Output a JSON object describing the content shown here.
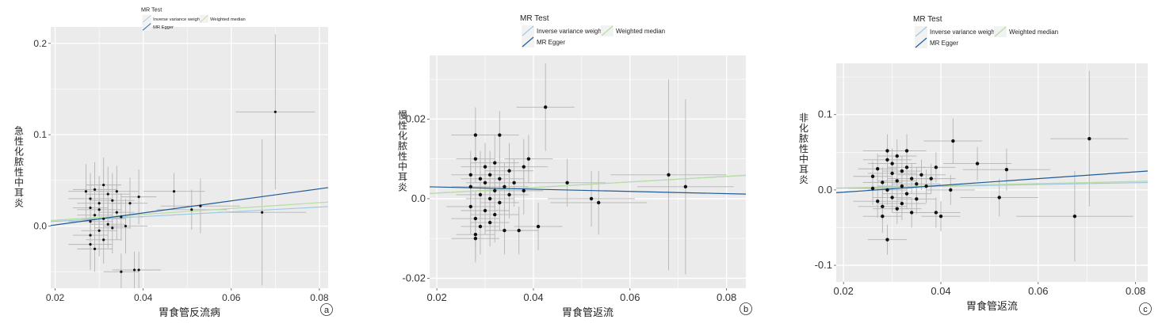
{
  "colors": {
    "panel_bg": "#ebebeb",
    "grid": "#ffffff",
    "point": "#111111",
    "errorbar": "#b5b5b5",
    "ivw": "#9ecae1",
    "egger": "#1f5a96",
    "median": "#b7dd9f",
    "text": "#222222",
    "tick_text": "#333333"
  },
  "chart_data": [
    {
      "type": "scatter",
      "panel_label": "a",
      "legend_title": "MR Test",
      "legend_placement": "top",
      "legend": [
        "Inverse variance weighted",
        "Weighted median",
        "MR Egger"
      ],
      "xlabel": "胃食管反流病",
      "ylabel": "急性化脓性中耳炎",
      "xlim": [
        0.019,
        0.082
      ],
      "ylim": [
        -0.068,
        0.218
      ],
      "xticks": [
        0.02,
        0.04,
        0.06,
        0.08
      ],
      "xtick_labels": [
        "0.02",
        "0.04",
        "0.06",
        "0.08"
      ],
      "yticks": [
        0.0,
        0.1,
        0.2
      ],
      "ytick_labels": [
        "0.0",
        "0.1",
        "0.2"
      ],
      "grid": true,
      "lines": [
        {
          "name": "Inverse variance weighted",
          "slope": 0.26,
          "intercept": 0
        },
        {
          "name": "Weighted median",
          "slope": 0.32,
          "intercept": 0
        },
        {
          "name": "MR Egger",
          "slope": 0.66,
          "intercept": -0.012
        }
      ],
      "points": [
        {
          "x": 0.027,
          "y": 0.038,
          "xerr": 0.004,
          "yerr": 0.03
        },
        {
          "x": 0.028,
          "y": 0.03,
          "xerr": 0.005,
          "yerr": 0.028
        },
        {
          "x": 0.028,
          "y": 0.02,
          "xerr": 0.004,
          "yerr": 0.03
        },
        {
          "x": 0.028,
          "y": 0.005,
          "xerr": 0.005,
          "yerr": 0.025
        },
        {
          "x": 0.028,
          "y": -0.01,
          "xerr": 0.004,
          "yerr": 0.03
        },
        {
          "x": 0.028,
          "y": -0.02,
          "xerr": 0.005,
          "yerr": 0.028
        },
        {
          "x": 0.029,
          "y": -0.025,
          "xerr": 0.004,
          "yerr": 0.025
        },
        {
          "x": 0.029,
          "y": 0.04,
          "xerr": 0.005,
          "yerr": 0.03
        },
        {
          "x": 0.029,
          "y": 0.012,
          "xerr": 0.004,
          "yerr": 0.026
        },
        {
          "x": 0.03,
          "y": 0.025,
          "xerr": 0.005,
          "yerr": 0.03
        },
        {
          "x": 0.03,
          "y": -0.005,
          "xerr": 0.004,
          "yerr": 0.028
        },
        {
          "x": 0.03,
          "y": 0.018,
          "xerr": 0.005,
          "yerr": 0.025
        },
        {
          "x": 0.031,
          "y": 0.045,
          "xerr": 0.004,
          "yerr": 0.03
        },
        {
          "x": 0.031,
          "y": 0.008,
          "xerr": 0.005,
          "yerr": 0.028
        },
        {
          "x": 0.031,
          "y": -0.015,
          "xerr": 0.004,
          "yerr": 0.026
        },
        {
          "x": 0.032,
          "y": 0.035,
          "xerr": 0.005,
          "yerr": 0.03
        },
        {
          "x": 0.032,
          "y": 0.002,
          "xerr": 0.004,
          "yerr": 0.026
        },
        {
          "x": 0.033,
          "y": 0.028,
          "xerr": 0.005,
          "yerr": 0.03
        },
        {
          "x": 0.033,
          "y": -0.002,
          "xerr": 0.004,
          "yerr": 0.028
        },
        {
          "x": 0.034,
          "y": 0.038,
          "xerr": 0.005,
          "yerr": 0.028
        },
        {
          "x": 0.034,
          "y": 0.015,
          "xerr": 0.004,
          "yerr": 0.03
        },
        {
          "x": 0.035,
          "y": 0.01,
          "xerr": 0.005,
          "yerr": 0.026
        },
        {
          "x": 0.035,
          "y": -0.05,
          "xerr": 0.004,
          "yerr": 0.02
        },
        {
          "x": 0.036,
          "y": 0.0,
          "xerr": 0.005,
          "yerr": 0.03
        },
        {
          "x": 0.037,
          "y": 0.025,
          "xerr": 0.004,
          "yerr": 0.028
        },
        {
          "x": 0.038,
          "y": -0.048,
          "xerr": 0.005,
          "yerr": 0.02
        },
        {
          "x": 0.039,
          "y": 0.032,
          "xerr": 0.004,
          "yerr": 0.03
        },
        {
          "x": 0.039,
          "y": -0.048,
          "xerr": 0.005,
          "yerr": 0.02
        },
        {
          "x": 0.047,
          "y": 0.038,
          "xerr": 0.007,
          "yerr": 0.02
        },
        {
          "x": 0.051,
          "y": 0.018,
          "xerr": 0.008,
          "yerr": 0.022
        },
        {
          "x": 0.053,
          "y": 0.022,
          "xerr": 0.009,
          "yerr": 0.03
        },
        {
          "x": 0.067,
          "y": 0.015,
          "xerr": 0.01,
          "yerr": 0.08
        },
        {
          "x": 0.07,
          "y": 0.125,
          "xerr": 0.009,
          "yerr": 0.085
        }
      ]
    },
    {
      "type": "scatter",
      "panel_label": "b",
      "legend_title": "MR Test",
      "legend_placement": "top",
      "legend": [
        "Inverse variance weighted",
        "Weighted median",
        "MR Egger"
      ],
      "xlabel": "胃食管返流",
      "ylabel": "慢性化脓性中耳炎",
      "xlim": [
        0.0185,
        0.084
      ],
      "ylim": [
        -0.0225,
        0.036
      ],
      "xticks": [
        0.02,
        0.04,
        0.06,
        0.08
      ],
      "xtick_labels": [
        "0.02",
        "0.04",
        "0.06",
        "0.08"
      ],
      "yticks": [
        -0.02,
        0.0,
        0.02
      ],
      "ytick_labels": [
        "-0.02",
        "0.0",
        "0.02"
      ],
      "grid": true,
      "lines": [
        {
          "name": "Inverse variance weighted",
          "slope": 0.07,
          "intercept": 0
        },
        {
          "name": "Weighted median",
          "slope": 0.07,
          "intercept": 0
        },
        {
          "name": "MR Egger",
          "slope": -0.028,
          "intercept": 0.0035
        }
      ],
      "points": [
        {
          "x": 0.027,
          "y": 0.006,
          "xerr": 0.004,
          "yerr": 0.006
        },
        {
          "x": 0.027,
          "y": -0.002,
          "xerr": 0.005,
          "yerr": 0.007
        },
        {
          "x": 0.027,
          "y": 0.003,
          "xerr": 0.004,
          "yerr": 0.006
        },
        {
          "x": 0.028,
          "y": 0.016,
          "xerr": 0.005,
          "yerr": 0.007
        },
        {
          "x": 0.028,
          "y": 0.01,
          "xerr": 0.004,
          "yerr": 0.006
        },
        {
          "x": 0.028,
          "y": -0.005,
          "xerr": 0.005,
          "yerr": 0.007
        },
        {
          "x": 0.028,
          "y": -0.009,
          "xerr": 0.004,
          "yerr": 0.006
        },
        {
          "x": 0.028,
          "y": -0.01,
          "xerr": 0.005,
          "yerr": 0.006
        },
        {
          "x": 0.029,
          "y": 0.005,
          "xerr": 0.004,
          "yerr": 0.007
        },
        {
          "x": 0.029,
          "y": 0.001,
          "xerr": 0.005,
          "yerr": 0.006
        },
        {
          "x": 0.029,
          "y": -0.007,
          "xerr": 0.004,
          "yerr": 0.007
        },
        {
          "x": 0.03,
          "y": 0.008,
          "xerr": 0.005,
          "yerr": 0.006
        },
        {
          "x": 0.03,
          "y": 0.004,
          "xerr": 0.004,
          "yerr": 0.007
        },
        {
          "x": 0.03,
          "y": -0.003,
          "xerr": 0.005,
          "yerr": 0.006
        },
        {
          "x": 0.031,
          "y": 0.006,
          "xerr": 0.004,
          "yerr": 0.006
        },
        {
          "x": 0.031,
          "y": 0.0,
          "xerr": 0.005,
          "yerr": 0.007
        },
        {
          "x": 0.031,
          "y": -0.006,
          "xerr": 0.004,
          "yerr": 0.006
        },
        {
          "x": 0.032,
          "y": 0.009,
          "xerr": 0.005,
          "yerr": 0.007
        },
        {
          "x": 0.032,
          "y": 0.002,
          "xerr": 0.004,
          "yerr": 0.006
        },
        {
          "x": 0.032,
          "y": -0.004,
          "xerr": 0.005,
          "yerr": 0.007
        },
        {
          "x": 0.033,
          "y": 0.016,
          "xerr": 0.004,
          "yerr": 0.006
        },
        {
          "x": 0.033,
          "y": 0.005,
          "xerr": 0.005,
          "yerr": 0.006
        },
        {
          "x": 0.033,
          "y": -0.001,
          "xerr": 0.004,
          "yerr": 0.007
        },
        {
          "x": 0.034,
          "y": 0.003,
          "xerr": 0.005,
          "yerr": 0.006
        },
        {
          "x": 0.034,
          "y": -0.008,
          "xerr": 0.004,
          "yerr": 0.006
        },
        {
          "x": 0.035,
          "y": 0.007,
          "xerr": 0.005,
          "yerr": 0.007
        },
        {
          "x": 0.035,
          "y": 0.001,
          "xerr": 0.004,
          "yerr": 0.006
        },
        {
          "x": 0.036,
          "y": 0.004,
          "xerr": 0.005,
          "yerr": 0.006
        },
        {
          "x": 0.037,
          "y": -0.008,
          "xerr": 0.004,
          "yerr": 0.006
        },
        {
          "x": 0.038,
          "y": 0.008,
          "xerr": 0.005,
          "yerr": 0.007
        },
        {
          "x": 0.038,
          "y": 0.002,
          "xerr": 0.004,
          "yerr": 0.006
        },
        {
          "x": 0.039,
          "y": 0.01,
          "xerr": 0.005,
          "yerr": 0.006
        },
        {
          "x": 0.041,
          "y": -0.007,
          "xerr": 0.005,
          "yerr": 0.006
        },
        {
          "x": 0.0425,
          "y": 0.023,
          "xerr": 0.006,
          "yerr": 0.011
        },
        {
          "x": 0.047,
          "y": 0.004,
          "xerr": 0.008,
          "yerr": 0.006
        },
        {
          "x": 0.052,
          "y": 0.0,
          "xerr": 0.009,
          "yerr": 0.007
        },
        {
          "x": 0.0535,
          "y": -0.001,
          "xerr": 0.01,
          "yerr": 0.008
        },
        {
          "x": 0.068,
          "y": 0.006,
          "xerr": 0.012,
          "yerr": 0.024
        },
        {
          "x": 0.0715,
          "y": 0.003,
          "xerr": 0.01,
          "yerr": 0.022
        }
      ]
    },
    {
      "type": "scatter",
      "panel_label": "c",
      "legend_title": "MR Test",
      "legend_placement": "top",
      "legend": [
        "Inverse variance weighted",
        "Weighted median",
        "MR Egger"
      ],
      "xlabel": "胃食管返流",
      "ylabel": "非化脓性中耳炎",
      "xlim": [
        0.0185,
        0.0825
      ],
      "ylim": [
        -0.122,
        0.168
      ],
      "xticks": [
        0.02,
        0.04,
        0.06,
        0.08
      ],
      "xtick_labels": [
        "0.02",
        "0.04",
        "0.06",
        "0.08"
      ],
      "yticks": [
        -0.1,
        0.0,
        0.1
      ],
      "ytick_labels": [
        "-0.1",
        "0.0",
        "0.1"
      ],
      "grid": true,
      "lines": [
        {
          "name": "Inverse variance weighted",
          "slope": 0.12,
          "intercept": 0
        },
        {
          "name": "Weighted median",
          "slope": 0.14,
          "intercept": 0
        },
        {
          "name": "MR Egger",
          "slope": 0.45,
          "intercept": -0.012
        }
      ],
      "points": [
        {
          "x": 0.026,
          "y": 0.018,
          "xerr": 0.004,
          "yerr": 0.02
        },
        {
          "x": 0.026,
          "y": 0.002,
          "xerr": 0.005,
          "yerr": 0.022
        },
        {
          "x": 0.027,
          "y": 0.028,
          "xerr": 0.004,
          "yerr": 0.02
        },
        {
          "x": 0.027,
          "y": -0.015,
          "xerr": 0.005,
          "yerr": 0.022
        },
        {
          "x": 0.028,
          "y": 0.01,
          "xerr": 0.004,
          "yerr": 0.02
        },
        {
          "x": 0.028,
          "y": -0.022,
          "xerr": 0.005,
          "yerr": 0.02
        },
        {
          "x": 0.028,
          "y": -0.035,
          "xerr": 0.004,
          "yerr": 0.022
        },
        {
          "x": 0.029,
          "y": 0.052,
          "xerr": 0.005,
          "yerr": 0.022
        },
        {
          "x": 0.029,
          "y": 0.0,
          "xerr": 0.004,
          "yerr": 0.02
        },
        {
          "x": 0.029,
          "y": 0.04,
          "xerr": 0.005,
          "yerr": 0.02
        },
        {
          "x": 0.029,
          "y": -0.066,
          "xerr": 0.004,
          "yerr": 0.02
        },
        {
          "x": 0.03,
          "y": 0.022,
          "xerr": 0.005,
          "yerr": 0.022
        },
        {
          "x": 0.03,
          "y": -0.01,
          "xerr": 0.004,
          "yerr": 0.02
        },
        {
          "x": 0.03,
          "y": 0.035,
          "xerr": 0.005,
          "yerr": 0.02
        },
        {
          "x": 0.031,
          "y": 0.012,
          "xerr": 0.004,
          "yerr": 0.022
        },
        {
          "x": 0.031,
          "y": -0.025,
          "xerr": 0.005,
          "yerr": 0.02
        },
        {
          "x": 0.031,
          "y": 0.045,
          "xerr": 0.004,
          "yerr": 0.022
        },
        {
          "x": 0.032,
          "y": 0.005,
          "xerr": 0.005,
          "yerr": 0.02
        },
        {
          "x": 0.032,
          "y": 0.025,
          "xerr": 0.004,
          "yerr": 0.02
        },
        {
          "x": 0.032,
          "y": -0.018,
          "xerr": 0.005,
          "yerr": 0.022
        },
        {
          "x": 0.033,
          "y": 0.03,
          "xerr": 0.004,
          "yerr": 0.02
        },
        {
          "x": 0.033,
          "y": -0.005,
          "xerr": 0.005,
          "yerr": 0.02
        },
        {
          "x": 0.033,
          "y": 0.052,
          "xerr": 0.004,
          "yerr": 0.022
        },
        {
          "x": 0.034,
          "y": 0.015,
          "xerr": 0.005,
          "yerr": 0.02
        },
        {
          "x": 0.034,
          "y": -0.03,
          "xerr": 0.004,
          "yerr": 0.02
        },
        {
          "x": 0.035,
          "y": 0.008,
          "xerr": 0.005,
          "yerr": 0.022
        },
        {
          "x": 0.035,
          "y": -0.012,
          "xerr": 0.004,
          "yerr": 0.02
        },
        {
          "x": 0.036,
          "y": 0.02,
          "xerr": 0.005,
          "yerr": 0.02
        },
        {
          "x": 0.037,
          "y": 0.005,
          "xerr": 0.004,
          "yerr": 0.022
        },
        {
          "x": 0.038,
          "y": 0.015,
          "xerr": 0.005,
          "yerr": 0.02
        },
        {
          "x": 0.039,
          "y": 0.03,
          "xerr": 0.004,
          "yerr": 0.02
        },
        {
          "x": 0.039,
          "y": -0.03,
          "xerr": 0.005,
          "yerr": 0.02
        },
        {
          "x": 0.04,
          "y": -0.035,
          "xerr": 0.004,
          "yerr": 0.02
        },
        {
          "x": 0.042,
          "y": 0.0,
          "xerr": 0.005,
          "yerr": 0.02
        },
        {
          "x": 0.0425,
          "y": 0.065,
          "xerr": 0.006,
          "yerr": 0.03
        },
        {
          "x": 0.0475,
          "y": 0.035,
          "xerr": 0.007,
          "yerr": 0.022
        },
        {
          "x": 0.052,
          "y": -0.01,
          "xerr": 0.008,
          "yerr": 0.025
        },
        {
          "x": 0.0535,
          "y": 0.027,
          "xerr": 0.009,
          "yerr": 0.028
        },
        {
          "x": 0.0675,
          "y": -0.035,
          "xerr": 0.012,
          "yerr": 0.06
        },
        {
          "x": 0.0705,
          "y": 0.068,
          "xerr": 0.008,
          "yerr": 0.09
        }
      ]
    }
  ]
}
